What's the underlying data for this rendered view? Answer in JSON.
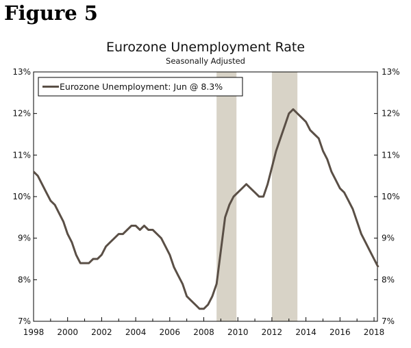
{
  "figure_label": "Figure 5",
  "chart_data": {
    "type": "line",
    "title": "Eurozone Unemployment Rate",
    "subtitle": "Seasonally Adjusted",
    "xlim": [
      1998,
      2018.2
    ],
    "ylim": [
      7,
      13
    ],
    "y_ticks": [
      "7%",
      "8%",
      "9%",
      "10%",
      "11%",
      "12%",
      "13%"
    ],
    "x_ticks": [
      "1998",
      "2000",
      "2002",
      "2004",
      "2006",
      "2008",
      "2010",
      "2012",
      "2014",
      "2016",
      "2018"
    ],
    "y_axis_both_sides": true,
    "legend": {
      "label": "Eurozone Unemployment: Jun @ 8.3%",
      "placement": "top-left"
    },
    "recession_shading": [
      [
        2008.75,
        2009.92
      ],
      [
        2012.0,
        2013.5
      ]
    ],
    "colors": {
      "line": "#5a4f46",
      "shading": "#d8d3c7",
      "axis": "#000000"
    },
    "series": [
      {
        "name": "Eurozone Unemployment",
        "x": [
          1998.0,
          1998.25,
          1998.5,
          1998.75,
          1999.0,
          1999.25,
          1999.5,
          1999.75,
          2000.0,
          2000.25,
          2000.5,
          2000.75,
          2001.0,
          2001.25,
          2001.5,
          2001.75,
          2002.0,
          2002.25,
          2002.5,
          2002.75,
          2003.0,
          2003.25,
          2003.5,
          2003.75,
          2004.0,
          2004.25,
          2004.5,
          2004.75,
          2005.0,
          2005.25,
          2005.5,
          2005.75,
          2006.0,
          2006.25,
          2006.5,
          2006.75,
          2007.0,
          2007.25,
          2007.5,
          2007.75,
          2008.0,
          2008.25,
          2008.5,
          2008.75,
          2009.0,
          2009.25,
          2009.5,
          2009.75,
          2010.0,
          2010.25,
          2010.5,
          2010.75,
          2011.0,
          2011.25,
          2011.5,
          2011.75,
          2012.0,
          2012.25,
          2012.5,
          2012.75,
          2013.0,
          2013.25,
          2013.5,
          2013.75,
          2014.0,
          2014.25,
          2014.5,
          2014.75,
          2015.0,
          2015.25,
          2015.5,
          2015.75,
          2016.0,
          2016.25,
          2016.5,
          2016.75,
          2017.0,
          2017.25,
          2017.5,
          2017.75,
          2018.0,
          2018.25
        ],
        "values": [
          10.6,
          10.5,
          10.3,
          10.1,
          9.9,
          9.8,
          9.6,
          9.4,
          9.1,
          8.9,
          8.6,
          8.4,
          8.4,
          8.4,
          8.5,
          8.5,
          8.6,
          8.8,
          8.9,
          9.0,
          9.1,
          9.1,
          9.2,
          9.3,
          9.3,
          9.2,
          9.3,
          9.2,
          9.2,
          9.1,
          9.0,
          8.8,
          8.6,
          8.3,
          8.1,
          7.9,
          7.6,
          7.5,
          7.4,
          7.3,
          7.3,
          7.4,
          7.6,
          7.9,
          8.7,
          9.5,
          9.8,
          10.0,
          10.1,
          10.2,
          10.3,
          10.2,
          10.1,
          10.0,
          10.0,
          10.3,
          10.7,
          11.1,
          11.4,
          11.7,
          12.0,
          12.1,
          12.0,
          11.9,
          11.8,
          11.6,
          11.5,
          11.4,
          11.1,
          10.9,
          10.6,
          10.4,
          10.2,
          10.1,
          9.9,
          9.7,
          9.4,
          9.1,
          8.9,
          8.7,
          8.5,
          8.3
        ]
      }
    ]
  }
}
